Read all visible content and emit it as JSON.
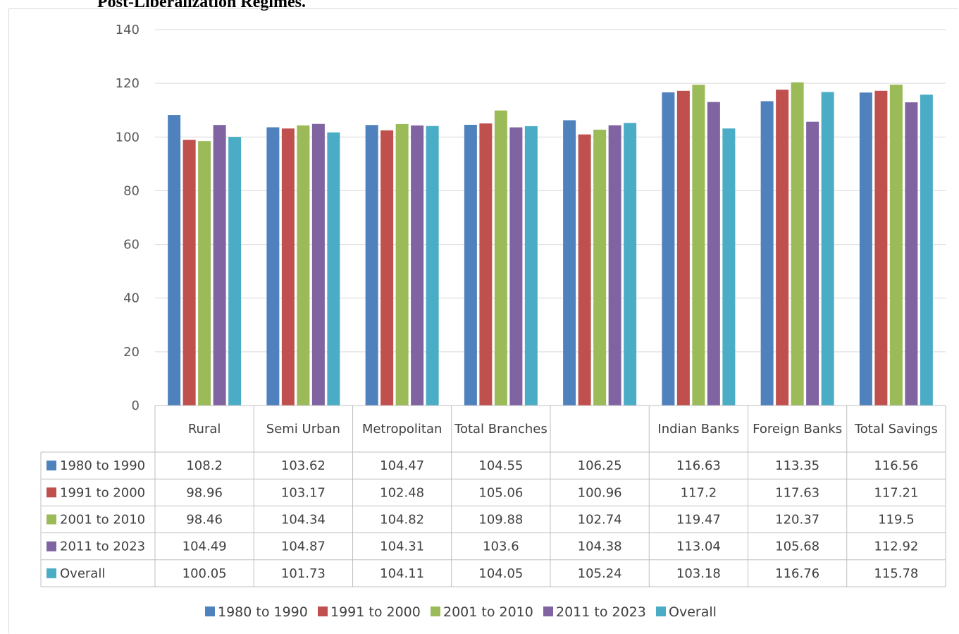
{
  "heading": "Post-Liberalization Regimes.",
  "chart_data": {
    "type": "bar",
    "categories": [
      "Rural",
      "Semi Urban",
      "Metropolitan",
      "Total Branches",
      "",
      "Indian Banks",
      "Foreign Banks",
      "Total Savings"
    ],
    "series": [
      {
        "name": "1980 to 1990",
        "color": "#4f81bd",
        "values": [
          108.2,
          103.62,
          104.47,
          104.55,
          106.25,
          116.63,
          113.35,
          116.56
        ]
      },
      {
        "name": "1991 to 2000",
        "color": "#c0504d",
        "values": [
          98.96,
          103.17,
          102.48,
          105.06,
          100.96,
          117.2,
          117.63,
          117.21
        ]
      },
      {
        "name": "2001 to 2010",
        "color": "#9bbb59",
        "values": [
          98.46,
          104.34,
          104.82,
          109.88,
          102.74,
          119.47,
          120.37,
          119.5
        ]
      },
      {
        "name": "2011 to 2023",
        "color": "#8064a2",
        "values": [
          104.49,
          104.87,
          104.31,
          103.6,
          104.38,
          113.04,
          105.68,
          112.92
        ]
      },
      {
        "name": "Overall",
        "color": "#4bacc6",
        "values": [
          100.05,
          101.73,
          104.11,
          104.05,
          105.24,
          103.18,
          116.76,
          115.78
        ]
      }
    ],
    "ylim": [
      0,
      140
    ],
    "yticks": [
      0,
      20,
      40,
      60,
      80,
      100,
      120,
      140
    ],
    "grid": true,
    "legend": "bottom",
    "data_table": true
  }
}
